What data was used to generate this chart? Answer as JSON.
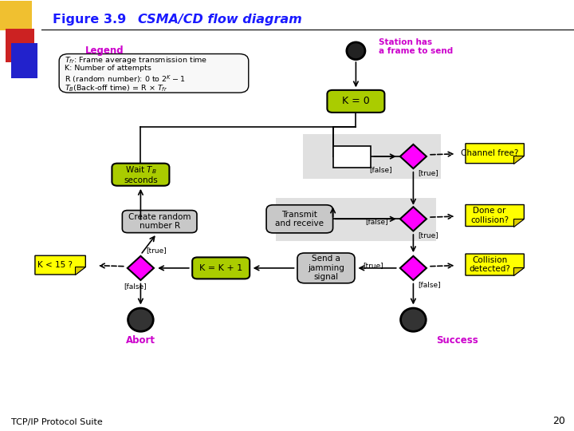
{
  "title_bold": "Figure 3.9",
  "title_italic": "CSMA/CD flow diagram",
  "footer": "TCP/IP Protocol Suite",
  "footer_page": "20",
  "bg_color": "#ffffff",
  "blue_color": "#1a1aff",
  "magenta": "#cc00cc",
  "green_node": "#aacc00",
  "gray_node": "#c8c8c8",
  "pink_diamond": "#ff00ff",
  "yellow_note": "#ffff00",
  "gray_bg": "#e0e0e0",
  "dark_circle": "#222222"
}
